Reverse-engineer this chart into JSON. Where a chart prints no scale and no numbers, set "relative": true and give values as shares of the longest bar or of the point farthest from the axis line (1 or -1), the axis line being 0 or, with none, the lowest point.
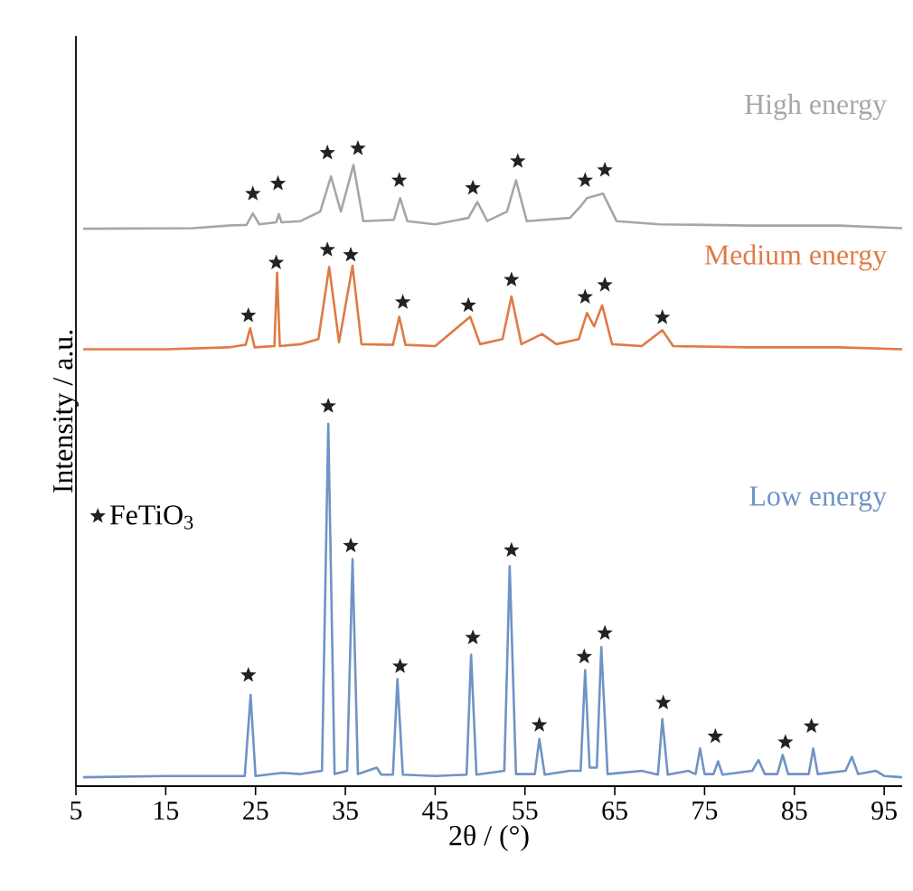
{
  "chart_data": {
    "type": "line",
    "xlabel": "2θ / (°)",
    "ylabel": "Intensity / a.u.",
    "relative": true,
    "xlim": [
      5,
      97
    ],
    "xticks": [
      5,
      15,
      25,
      35,
      45,
      55,
      65,
      75,
      85,
      95
    ],
    "legend": "left",
    "grid": false,
    "series": [
      {
        "name": "High energy",
        "color": "#a6a6a6",
        "x": [
          5.8,
          18,
          22,
          24.0,
          24.7,
          25.4,
          27.3,
          27.6,
          27.9,
          30,
          32.2,
          33.4,
          34.5,
          35.9,
          37,
          40.4,
          41.1,
          41.9,
          45,
          48.7,
          49.7,
          50.8,
          53.0,
          54.0,
          55.2,
          60,
          61.3,
          61.9,
          63.7,
          65.2,
          70,
          80,
          90,
          97
        ],
        "values": [
          0.874,
          0.875,
          0.879,
          0.88,
          0.898,
          0.881,
          0.884,
          0.897,
          0.884,
          0.886,
          0.901,
          0.956,
          0.901,
          0.974,
          0.886,
          0.888,
          0.922,
          0.886,
          0.881,
          0.891,
          0.916,
          0.886,
          0.901,
          0.95,
          0.886,
          0.891,
          0.911,
          0.922,
          0.929,
          0.886,
          0.881,
          0.879,
          0.879,
          0.875
        ]
      },
      {
        "name": "Medium energy",
        "color": "#e07a45",
        "x": [
          5.8,
          15,
          22,
          23.9,
          24.4,
          24.9,
          27.1,
          27.4,
          27.7,
          30,
          32,
          33.2,
          34.3,
          35.8,
          36.8,
          40.3,
          41.0,
          41.7,
          45,
          48.9,
          50.0,
          52.5,
          53.5,
          54.6,
          56.9,
          58.5,
          61.0,
          61.9,
          62.7,
          63.6,
          64.7,
          68,
          70.3,
          71.5,
          80,
          90,
          97
        ],
        "values": [
          0.685,
          0.685,
          0.688,
          0.692,
          0.718,
          0.688,
          0.69,
          0.805,
          0.69,
          0.693,
          0.701,
          0.814,
          0.696,
          0.816,
          0.693,
          0.692,
          0.736,
          0.692,
          0.69,
          0.736,
          0.693,
          0.701,
          0.768,
          0.693,
          0.709,
          0.693,
          0.701,
          0.742,
          0.721,
          0.754,
          0.693,
          0.69,
          0.715,
          0.69,
          0.688,
          0.688,
          0.685
        ]
      },
      {
        "name": "Low energy",
        "color": "#6f93c5",
        "x": [
          5.8,
          15,
          20,
          23.8,
          24.45,
          25.0,
          28,
          30,
          32.4,
          33.1,
          33.8,
          35.2,
          35.8,
          36.4,
          38.5,
          39,
          40.3,
          40.8,
          41.4,
          45,
          48.5,
          49.0,
          49.6,
          52.7,
          53.3,
          54.0,
          56.1,
          56.6,
          57.2,
          60,
          61.2,
          61.7,
          62.2,
          63.0,
          63.5,
          64.2,
          68,
          69.8,
          70.3,
          70.9,
          73.2,
          74.0,
          74.5,
          75.0,
          76.0,
          76.5,
          77.0,
          80.3,
          81,
          81.7,
          83.1,
          83.7,
          84.3,
          86.6,
          87.1,
          87.6,
          90.7,
          91.4,
          92.1,
          94.1,
          95,
          97
        ],
        "values": [
          0.014,
          0.016,
          0.016,
          0.016,
          0.143,
          0.016,
          0.021,
          0.019,
          0.024,
          0.568,
          0.019,
          0.024,
          0.356,
          0.019,
          0.029,
          0.018,
          0.018,
          0.168,
          0.018,
          0.016,
          0.018,
          0.206,
          0.018,
          0.024,
          0.345,
          0.019,
          0.019,
          0.074,
          0.018,
          0.024,
          0.024,
          0.182,
          0.029,
          0.029,
          0.218,
          0.019,
          0.024,
          0.018,
          0.105,
          0.018,
          0.024,
          0.019,
          0.059,
          0.019,
          0.019,
          0.039,
          0.018,
          0.024,
          0.041,
          0.019,
          0.019,
          0.049,
          0.019,
          0.019,
          0.059,
          0.019,
          0.024,
          0.046,
          0.019,
          0.024,
          0.016,
          0.014
        ]
      },
      {
        "name": "FeTiO$_{3}$",
        "type": "scatter",
        "marker": "star",
        "color": "#222222",
        "x": [
          24.7,
          27.5,
          33.0,
          36.4,
          41.0,
          49.2,
          54.2,
          61.7,
          63.9,
          24.2,
          27.3,
          33.0,
          35.6,
          41.4,
          48.7,
          53.5,
          61.7,
          63.9,
          70.3,
          24.2,
          33.1,
          35.6,
          41.1,
          49.2,
          53.5,
          56.6,
          61.6,
          63.9,
          70.4,
          76.2,
          84.0,
          86.9
        ],
        "values": [
          0.929,
          0.945,
          0.993,
          1.0,
          0.95,
          0.938,
          0.98,
          0.95,
          0.966,
          0.738,
          0.821,
          0.841,
          0.833,
          0.759,
          0.754,
          0.794,
          0.767,
          0.786,
          0.735,
          0.174,
          0.596,
          0.377,
          0.188,
          0.233,
          0.37,
          0.096,
          0.203,
          0.24,
          0.131,
          0.078,
          0.069,
          0.094
        ]
      }
    ]
  }
}
